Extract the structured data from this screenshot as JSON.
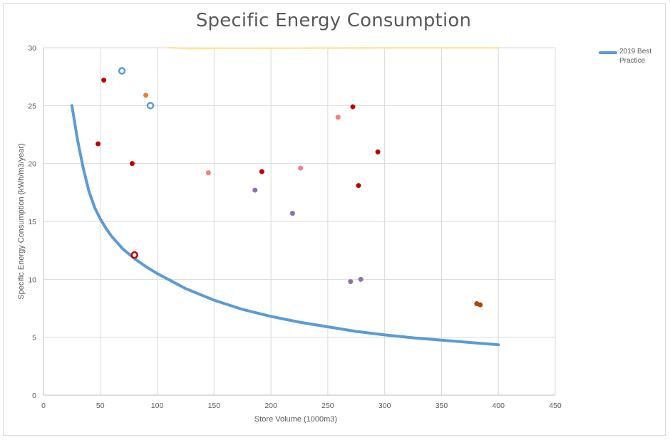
{
  "chart_data": {
    "type": "scatter",
    "title": "Specific Energy Consumption",
    "xlabel": "Store Volume (1000m3)",
    "ylabel": "Specific Energy Consumption (kWh/m3/year)",
    "xlim": [
      0,
      450
    ],
    "ylim": [
      0,
      30
    ],
    "xticks": [
      0,
      50,
      100,
      150,
      200,
      250,
      300,
      350,
      400,
      450
    ],
    "yticks": [
      0,
      5,
      10,
      15,
      20,
      25,
      30
    ],
    "grid": true,
    "legend_position": "right",
    "series": [
      {
        "name": "2019 Best Practice",
        "kind": "line",
        "color": "#5b9bd5",
        "points": [
          [
            25,
            25
          ],
          [
            30,
            22
          ],
          [
            35,
            19.6
          ],
          [
            40,
            17.6
          ],
          [
            45,
            16.2
          ],
          [
            50,
            15.2
          ],
          [
            55,
            14.4
          ],
          [
            60,
            13.7
          ],
          [
            70,
            12.6
          ],
          [
            80,
            11.8
          ],
          [
            90,
            11.1
          ],
          [
            100,
            10.5
          ],
          [
            125,
            9.2
          ],
          [
            150,
            8.2
          ],
          [
            175,
            7.4
          ],
          [
            200,
            6.8
          ],
          [
            225,
            6.3
          ],
          [
            250,
            5.9
          ],
          [
            275,
            5.5
          ],
          [
            300,
            5.2
          ],
          [
            325,
            4.95
          ],
          [
            350,
            4.75
          ],
          [
            375,
            4.55
          ],
          [
            400,
            4.35
          ]
        ]
      },
      {
        "kind": "line",
        "color": "#ffe699",
        "points": [
          [
            110,
            30
          ],
          [
            130,
            29.92
          ],
          [
            150,
            29.95
          ],
          [
            200,
            29.96
          ],
          [
            300,
            29.98
          ],
          [
            400,
            29.98
          ]
        ]
      },
      {
        "kind": "scatter",
        "color": "#c00000",
        "points": [
          [
            53,
            27.2
          ],
          [
            48,
            21.7
          ],
          [
            78,
            20
          ],
          [
            192,
            19.3
          ],
          [
            272,
            24.9
          ],
          [
            294,
            21
          ],
          [
            277,
            18.1
          ]
        ]
      },
      {
        "kind": "scatter",
        "color": "#f08080",
        "points": [
          [
            145,
            19.2
          ],
          [
            226,
            19.6
          ],
          [
            259,
            24
          ]
        ]
      },
      {
        "kind": "scatter",
        "color": "#8e6fae",
        "points": [
          [
            186,
            17.7
          ],
          [
            219,
            15.7
          ],
          [
            270,
            9.8
          ],
          [
            279,
            10
          ]
        ]
      },
      {
        "kind": "scatter",
        "color": "#ed7d31",
        "points": [
          [
            90,
            25.9
          ]
        ]
      },
      {
        "kind": "scatter",
        "color": "#b04500",
        "points": [
          [
            381,
            7.9
          ],
          [
            384,
            7.8
          ]
        ]
      },
      {
        "kind": "scatter-open",
        "color": "#5b9bd5",
        "points": [
          [
            69,
            28
          ],
          [
            94,
            25
          ]
        ]
      },
      {
        "kind": "scatter-open",
        "color": "#c00000",
        "points": [
          [
            80,
            12.1
          ]
        ]
      }
    ]
  }
}
